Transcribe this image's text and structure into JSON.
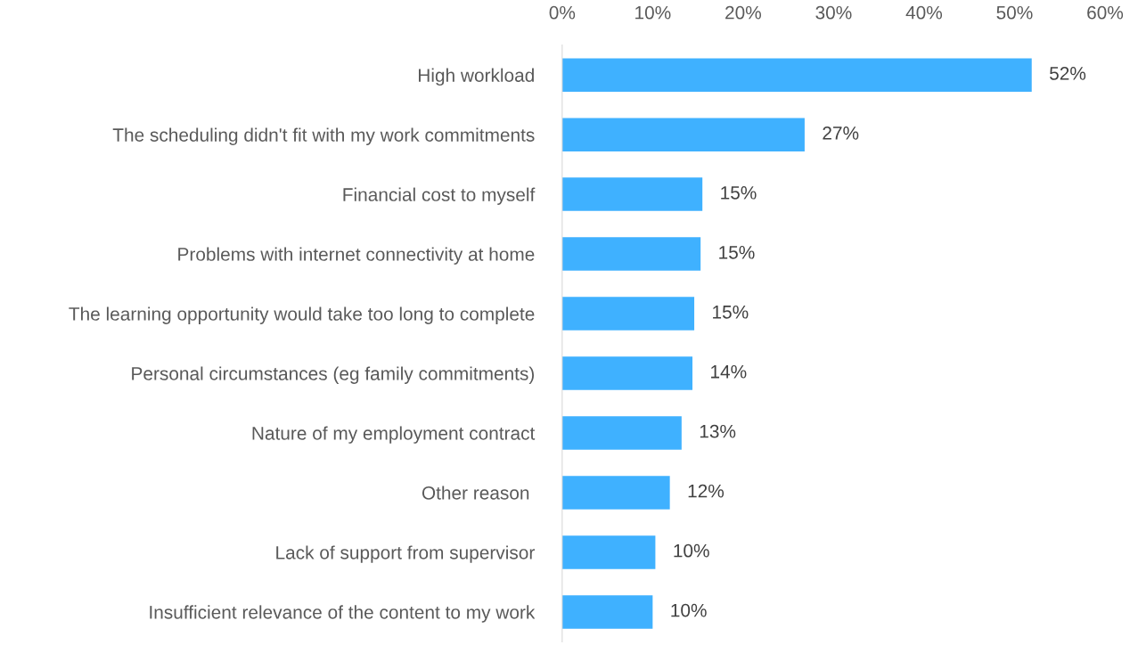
{
  "chart_data": {
    "type": "bar",
    "orientation": "horizontal",
    "categories": [
      "High workload",
      "The scheduling didn't fit with my work commitments",
      "Financial cost to myself",
      "Problems with internet connectivity at home",
      "The learning opportunity would take too long to complete",
      "Personal circumstances (eg family commitments)",
      "Nature of my employment contract",
      "Other reason ",
      "Lack of support from supervisor",
      "Insufficient relevance of the content to my work"
    ],
    "values": [
      51.9,
      26.8,
      15.5,
      15.3,
      14.6,
      14.4,
      13.2,
      11.9,
      10.3,
      10.0
    ],
    "value_labels": [
      "52%",
      "27%",
      "15%",
      "15%",
      "15%",
      "14%",
      "13%",
      "12%",
      "10%",
      "10%"
    ],
    "color": "#3fb1ff",
    "xlim": [
      0,
      60
    ],
    "xticks": [
      {
        "value": 0,
        "label": "0%"
      },
      {
        "value": 10,
        "label": "10%"
      },
      {
        "value": 20,
        "label": "20%"
      },
      {
        "value": 30,
        "label": "30%"
      },
      {
        "value": 40,
        "label": "40%"
      },
      {
        "value": 50,
        "label": "50%"
      },
      {
        "value": 60,
        "label": "60%"
      }
    ],
    "grid": false,
    "legend": false
  }
}
